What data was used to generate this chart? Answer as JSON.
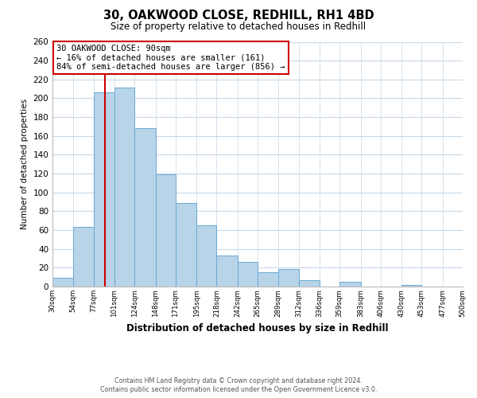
{
  "title": "30, OAKWOOD CLOSE, REDHILL, RH1 4BD",
  "subtitle": "Size of property relative to detached houses in Redhill",
  "xlabel": "Distribution of detached houses by size in Redhill",
  "ylabel": "Number of detached properties",
  "bar_color": "#b8d4e8",
  "bar_edge_color": "#6aaad4",
  "background_color": "#ffffff",
  "grid_color": "#c8d8e8",
  "bin_edges": [
    30,
    54,
    77,
    101,
    124,
    148,
    171,
    195,
    218,
    242,
    265,
    289,
    312,
    336,
    359,
    383,
    406,
    430,
    453,
    477,
    500
  ],
  "bin_labels": [
    "30sqm",
    "54sqm",
    "77sqm",
    "101sqm",
    "124sqm",
    "148sqm",
    "171sqm",
    "195sqm",
    "218sqm",
    "242sqm",
    "265sqm",
    "289sqm",
    "312sqm",
    "336sqm",
    "359sqm",
    "383sqm",
    "406sqm",
    "430sqm",
    "453sqm",
    "477sqm",
    "500sqm"
  ],
  "bar_heights": [
    9,
    63,
    206,
    211,
    168,
    119,
    89,
    65,
    33,
    26,
    15,
    19,
    7,
    0,
    5,
    0,
    0,
    2,
    0,
    0
  ],
  "ylim": [
    0,
    260
  ],
  "yticks": [
    0,
    20,
    40,
    60,
    80,
    100,
    120,
    140,
    160,
    180,
    200,
    220,
    240,
    260
  ],
  "property_line_x": 90,
  "property_line_color": "#cc0000",
  "annotation_title": "30 OAKWOOD CLOSE: 90sqm",
  "annotation_line1": "← 16% of detached houses are smaller (161)",
  "annotation_line2": "84% of semi-detached houses are larger (856) →",
  "annotation_box_color": "#ffffff",
  "annotation_box_edge": "#cc0000",
  "footer_line1": "Contains HM Land Registry data © Crown copyright and database right 2024.",
  "footer_line2": "Contains public sector information licensed under the Open Government Licence v3.0."
}
